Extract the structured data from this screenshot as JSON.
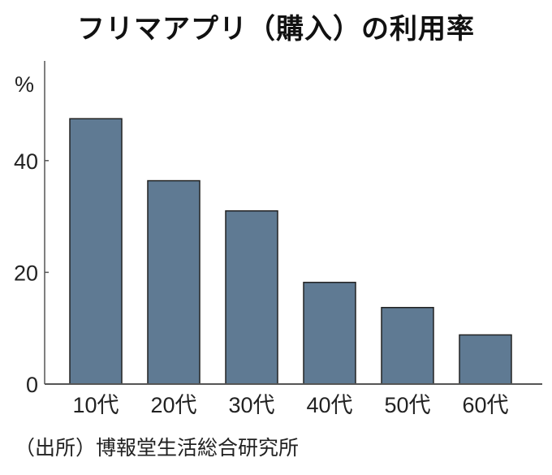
{
  "chart_data": {
    "type": "bar",
    "title": "フリマアプリ（購入）の利用率",
    "ylabel": "%",
    "categories": [
      "10代",
      "20代",
      "30代",
      "40代",
      "50代",
      "60代"
    ],
    "values": [
      47.5,
      36.4,
      31.0,
      18.2,
      13.7,
      8.8
    ],
    "yticks": [
      0,
      20,
      40
    ],
    "ylim": [
      0,
      55
    ],
    "grid": false,
    "bar_color": "#5f7a93",
    "source": "（出所）博報堂生活総合研究所"
  }
}
